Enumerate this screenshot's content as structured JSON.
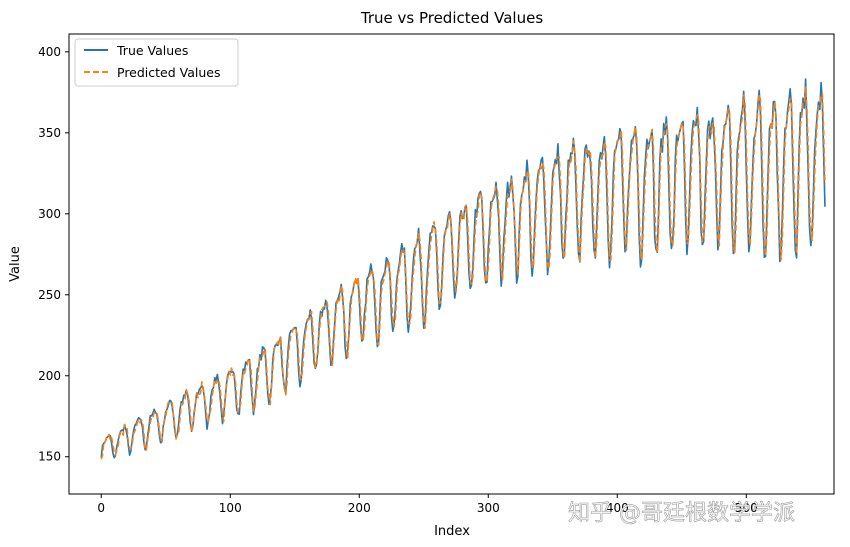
{
  "chart_data": {
    "type": "line",
    "title": "True vs Predicted Values",
    "xlabel": "Index",
    "ylabel": "Value",
    "xlim": [
      -25,
      568
    ],
    "ylim": [
      127,
      411
    ],
    "xticks": [
      0,
      100,
      200,
      300,
      400,
      500
    ],
    "yticks": [
      150,
      200,
      250,
      300,
      350,
      400
    ],
    "grid": false,
    "legend_position": "top-left",
    "x_range": [
      0,
      561
    ],
    "anchors": [
      {
        "x": 0,
        "y": 155
      },
      {
        "x": 40,
        "y": 170
      },
      {
        "x": 80,
        "y": 185
      },
      {
        "x": 120,
        "y": 200
      },
      {
        "x": 160,
        "y": 222
      },
      {
        "x": 200,
        "y": 245
      },
      {
        "x": 240,
        "y": 262
      },
      {
        "x": 280,
        "y": 282
      },
      {
        "x": 320,
        "y": 300
      },
      {
        "x": 360,
        "y": 312
      },
      {
        "x": 400,
        "y": 320
      },
      {
        "x": 440,
        "y": 325
      },
      {
        "x": 480,
        "y": 330
      },
      {
        "x": 520,
        "y": 333
      },
      {
        "x": 561,
        "y": 335
      }
    ],
    "series": [
      {
        "name": "True Values",
        "color": "#1f77b4",
        "style": "solid"
      },
      {
        "name": "Predicted Values",
        "color": "#ff7f0e",
        "style": "dashed"
      }
    ]
  },
  "watermark": {
    "text": "知乎 @哥廷根数学学派"
  }
}
